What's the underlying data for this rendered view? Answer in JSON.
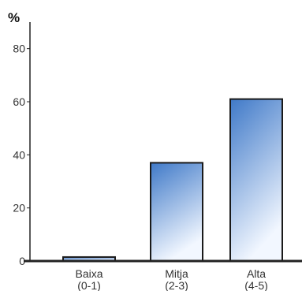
{
  "chart_data": {
    "type": "bar",
    "title": "",
    "xlabel": "",
    "ylabel": "%",
    "ylim": [
      0,
      90
    ],
    "yticks": [
      0,
      20,
      40,
      60,
      80
    ],
    "grid": false,
    "categories": [
      {
        "line1": "Baixa",
        "line2": "(0-1)"
      },
      {
        "line1": "Mitja",
        "line2": "(2-3)"
      },
      {
        "line1": "Alta",
        "line2": "(4-5)"
      }
    ],
    "values": [
      1.5,
      37,
      61
    ],
    "colors": {
      "bar_top": "#3f79c8",
      "bar_bottom": "#f2f7ff",
      "bar_edge": "#1a1a1a",
      "axis": "#222222"
    }
  }
}
